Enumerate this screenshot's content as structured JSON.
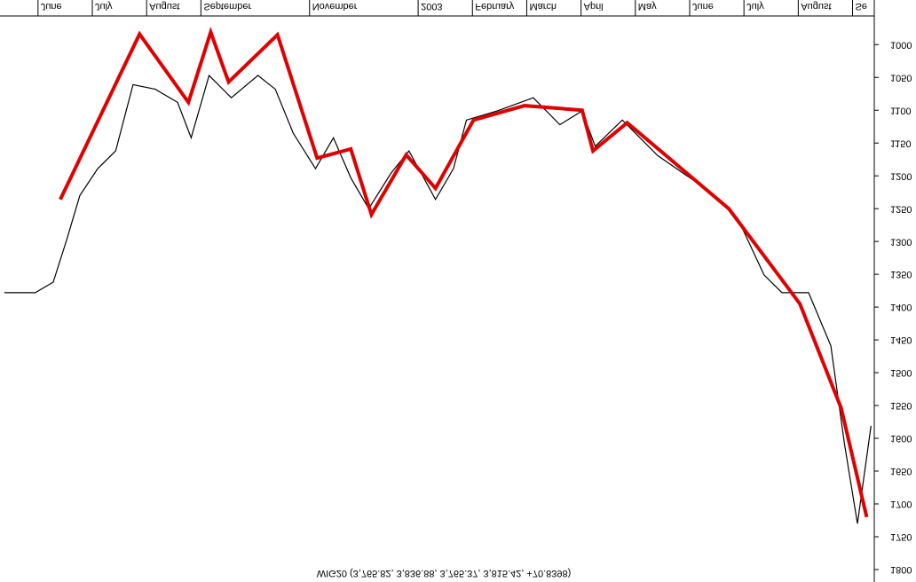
{
  "chart_data": {
    "type": "line",
    "title": "WIG20 (3,765.82, 3,836.88, 3,765.37, 3,815.42, +70.8398)",
    "xlim": [
      -0.7,
      15.4
    ],
    "xticks": [
      {
        "value": 0,
        "label": "June"
      },
      {
        "value": 1,
        "label": "July"
      },
      {
        "value": 2,
        "label": "August"
      },
      {
        "value": 3,
        "label": "September"
      },
      {
        "value": 5,
        "label": "November"
      },
      {
        "value": 7,
        "label": "2003"
      },
      {
        "value": 8,
        "label": "February"
      },
      {
        "value": 9,
        "label": "March"
      },
      {
        "value": 10,
        "label": "April"
      },
      {
        "value": 11,
        "label": "May"
      },
      {
        "value": 12,
        "label": "June"
      },
      {
        "value": 13,
        "label": "July"
      },
      {
        "value": 14,
        "label": "August"
      },
      {
        "value": 15,
        "label": "Se"
      }
    ],
    "ylim": [
      932,
      1819
    ],
    "y_inverted": true,
    "yticks": [
      1000,
      1050,
      1100,
      1150,
      1200,
      1250,
      1300,
      1350,
      1400,
      1450,
      1500,
      1550,
      1600,
      1650,
      1700,
      1750,
      1800
    ],
    "series": [
      {
        "color": "#000000",
        "x": [
          -0.62,
          -0.05,
          0.28,
          0.53,
          0.77,
          1.1,
          1.43,
          1.75,
          2.16,
          2.57,
          2.82,
          3.15,
          3.56,
          4.05,
          4.37,
          4.7,
          5.11,
          5.44,
          5.76,
          6.09,
          6.5,
          6.83,
          7.32,
          7.65,
          7.89,
          8.46,
          9.12,
          9.61,
          10.02,
          10.26,
          10.76,
          11.41,
          12.23,
          12.88,
          13.37,
          13.7,
          14.19,
          14.6,
          14.85,
          15.09,
          15.34
        ],
        "values": [
          1378,
          1378,
          1362,
          1297,
          1230,
          1189,
          1162,
          1061,
          1068,
          1088,
          1142,
          1047,
          1081,
          1047,
          1068,
          1135,
          1189,
          1142,
          1203,
          1250,
          1196,
          1162,
          1236,
          1189,
          1115,
          1101,
          1081,
          1122,
          1101,
          1155,
          1115,
          1169,
          1216,
          1264,
          1351,
          1378,
          1378,
          1459,
          1608,
          1730,
          1581
        ]
      },
      {
        "color": "#e00000",
        "x": [
          0.41,
          1.87,
          2.77,
          3.18,
          3.51,
          4.41,
          5.14,
          5.76,
          6.14,
          6.78,
          7.32,
          8.02,
          8.96,
          10.02,
          10.22,
          10.85,
          12.72,
          14.03,
          14.79,
          15.26
        ],
        "values": [
          1236,
          984,
          1088,
          981,
          1057,
          985,
          1173,
          1159,
          1259,
          1168,
          1219,
          1115,
          1093,
          1100,
          1162,
          1119,
          1250,
          1395,
          1554,
          1720
        ]
      }
    ]
  }
}
